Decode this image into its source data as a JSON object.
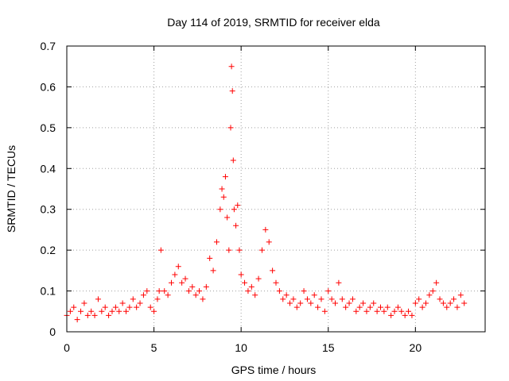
{
  "chart_data": {
    "type": "scatter",
    "title": "Day 114 of 2019, SRMTID for receiver elda",
    "xlabel": "GPS time / hours",
    "ylabel": "SRMTID / TECUs",
    "xlim": [
      0,
      24
    ],
    "ylim": [
      0,
      0.7
    ],
    "xticks": [
      0,
      5,
      10,
      15,
      20
    ],
    "xtick_labels": [
      "0",
      "5",
      "10",
      "15",
      "20"
    ],
    "yticks": [
      0,
      0.1,
      0.2,
      0.3,
      0.4,
      0.5,
      0.6,
      0.7
    ],
    "ytick_labels": [
      "0",
      "0.1",
      "0.2",
      "0.3",
      "0.4",
      "0.5",
      "0.6",
      "0.7"
    ],
    "grid": true,
    "marker": "plus",
    "series_color": "#ff0000",
    "series": [
      {
        "name": "SRMTID",
        "x": [
          0.0,
          0.2,
          0.4,
          0.6,
          0.8,
          1.0,
          1.2,
          1.4,
          1.6,
          1.8,
          2.0,
          2.2,
          2.4,
          2.6,
          2.8,
          3.0,
          3.2,
          3.4,
          3.6,
          3.8,
          4.0,
          4.2,
          4.4,
          4.6,
          4.8,
          5.0,
          5.2,
          5.3,
          5.4,
          5.6,
          5.8,
          6.0,
          6.2,
          6.4,
          6.6,
          6.8,
          7.0,
          7.2,
          7.4,
          7.6,
          7.8,
          8.0,
          8.2,
          8.4,
          8.6,
          8.8,
          8.9,
          9.0,
          9.1,
          9.2,
          9.3,
          9.4,
          9.45,
          9.5,
          9.55,
          9.6,
          9.7,
          9.8,
          9.9,
          10.0,
          10.2,
          10.4,
          10.6,
          10.8,
          11.0,
          11.2,
          11.4,
          11.6,
          11.8,
          12.0,
          12.2,
          12.4,
          12.6,
          12.8,
          13.0,
          13.2,
          13.4,
          13.6,
          13.8,
          14.0,
          14.2,
          14.4,
          14.6,
          14.8,
          15.0,
          15.2,
          15.4,
          15.6,
          15.8,
          16.0,
          16.2,
          16.4,
          16.6,
          16.8,
          17.0,
          17.2,
          17.4,
          17.6,
          17.8,
          18.0,
          18.2,
          18.4,
          18.6,
          18.8,
          19.0,
          19.2,
          19.4,
          19.6,
          19.8,
          20.0,
          20.2,
          20.4,
          20.6,
          20.8,
          21.0,
          21.2,
          21.4,
          21.6,
          21.8,
          22.0,
          22.2,
          22.4,
          22.6,
          22.8
        ],
        "y": [
          0.04,
          0.05,
          0.06,
          0.03,
          0.05,
          0.07,
          0.04,
          0.05,
          0.04,
          0.08,
          0.05,
          0.06,
          0.04,
          0.05,
          0.06,
          0.05,
          0.07,
          0.05,
          0.06,
          0.08,
          0.06,
          0.07,
          0.09,
          0.1,
          0.06,
          0.05,
          0.08,
          0.1,
          0.2,
          0.1,
          0.09,
          0.12,
          0.14,
          0.16,
          0.12,
          0.13,
          0.1,
          0.11,
          0.09,
          0.1,
          0.08,
          0.11,
          0.18,
          0.15,
          0.22,
          0.3,
          0.35,
          0.33,
          0.38,
          0.28,
          0.2,
          0.5,
          0.65,
          0.59,
          0.42,
          0.3,
          0.26,
          0.31,
          0.2,
          0.14,
          0.12,
          0.1,
          0.11,
          0.09,
          0.13,
          0.2,
          0.25,
          0.22,
          0.15,
          0.12,
          0.1,
          0.08,
          0.09,
          0.07,
          0.08,
          0.06,
          0.07,
          0.1,
          0.08,
          0.07,
          0.09,
          0.06,
          0.08,
          0.05,
          0.1,
          0.08,
          0.07,
          0.12,
          0.08,
          0.06,
          0.07,
          0.08,
          0.05,
          0.06,
          0.07,
          0.05,
          0.06,
          0.07,
          0.05,
          0.06,
          0.05,
          0.06,
          0.04,
          0.05,
          0.06,
          0.05,
          0.04,
          0.05,
          0.04,
          0.07,
          0.08,
          0.06,
          0.07,
          0.09,
          0.1,
          0.12,
          0.08,
          0.07,
          0.06,
          0.07,
          0.08,
          0.06,
          0.09,
          0.07
        ]
      }
    ]
  }
}
